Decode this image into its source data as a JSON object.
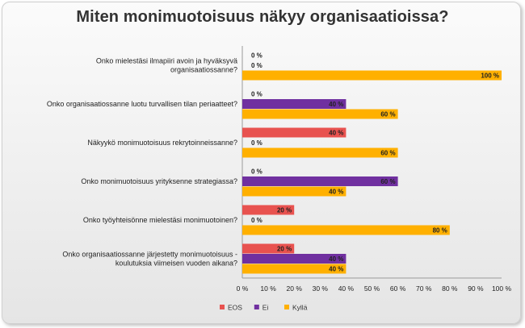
{
  "chart_data": {
    "type": "bar",
    "orientation": "horizontal",
    "title": "Miten monimuotoisuus näkyy organisaatioissa?",
    "categories": [
      [
        "Onko mielestäsi ilmapiiri avoin ja hyväksyvä",
        "organisaatiossanne?"
      ],
      [
        "Onko organisaatiossanne luotu turvallisen tilan periaatteet?"
      ],
      [
        "Näkyykö monimuotoisuus rekrytoinneissanne?"
      ],
      [
        "Onko monimuotoisuus yrityksenne strategiassa?"
      ],
      [
        "Onko työyhteisönne mielestäsi monimuotoinen?"
      ],
      [
        "Onko organisaatiossanne järjestetty monimuotoisuus -",
        "koulutuksia viimeisen vuoden aikana?"
      ]
    ],
    "series": [
      {
        "name": "EOS",
        "color": "#E8524F",
        "values": [
          0,
          0,
          40,
          0,
          20,
          20
        ]
      },
      {
        "name": "Ei",
        "color": "#7030A0",
        "values": [
          0,
          40,
          0,
          60,
          0,
          40
        ]
      },
      {
        "name": "Kyllä",
        "color": "#FFB000",
        "values": [
          100,
          60,
          60,
          40,
          80,
          40
        ]
      }
    ],
    "x_ticks": [
      "0 %",
      "10 %",
      "20 %",
      "30 %",
      "40 %",
      "50 %",
      "60 %",
      "70 %",
      "80 %",
      "90 %",
      "100 %"
    ],
    "xlim": [
      0,
      100
    ],
    "value_suffix": " %",
    "grid": false,
    "legend_position": "bottom"
  }
}
